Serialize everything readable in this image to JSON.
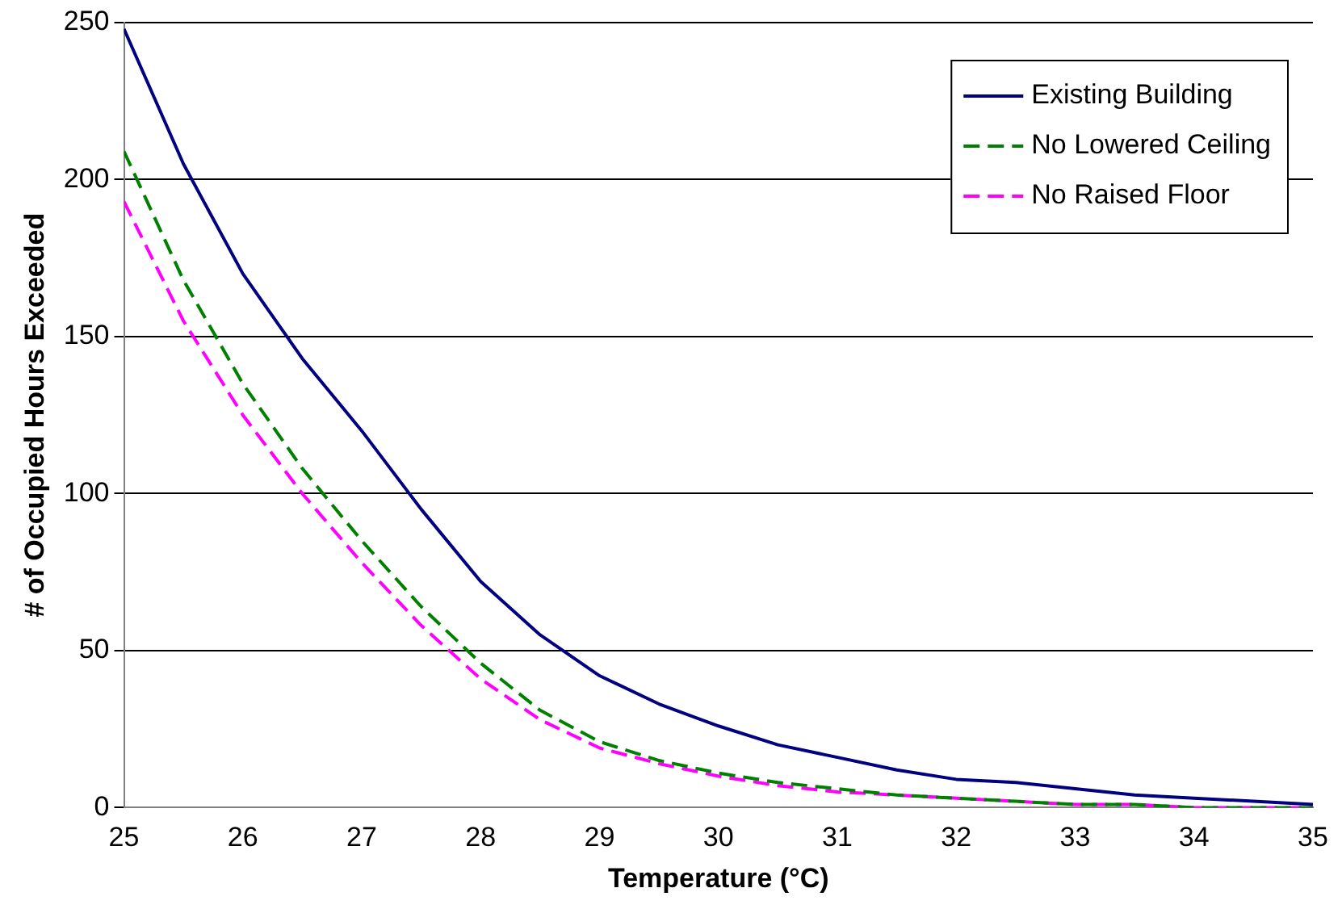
{
  "chart_data": {
    "type": "line",
    "xlabel": "Temperature (°C)",
    "ylabel": "# of Occupied Hours Exceeded",
    "x": [
      25,
      25.5,
      26,
      26.5,
      27,
      27.5,
      28,
      28.5,
      29,
      29.5,
      30,
      30.5,
      31,
      31.5,
      32,
      32.5,
      33,
      33.5,
      34,
      34.5,
      35
    ],
    "series": [
      {
        "name": "Existing Building",
        "color": "#000080",
        "line_style": "solid",
        "values": [
          248,
          205,
          170,
          143,
          120,
          95,
          72,
          55,
          42,
          33,
          26,
          20,
          16,
          12,
          9,
          8,
          6,
          4,
          3,
          2,
          1
        ]
      },
      {
        "name": "No Lowered Ceiling",
        "color": "#008000",
        "line_style": "dashed",
        "values": [
          209,
          168,
          135,
          108,
          85,
          64,
          46,
          31,
          21,
          15,
          11,
          8,
          6,
          4,
          3,
          2,
          1,
          1,
          0,
          0,
          0
        ]
      },
      {
        "name": "No Raised Floor",
        "color": "#ff00ff",
        "line_style": "dashed",
        "values": [
          193,
          155,
          125,
          100,
          78,
          58,
          41,
          28,
          19,
          14,
          10,
          7,
          5,
          4,
          3,
          2,
          1,
          1,
          0,
          0,
          0
        ]
      }
    ],
    "xlim": [
      25,
      35
    ],
    "xticks": [
      25,
      26,
      27,
      28,
      29,
      30,
      31,
      32,
      33,
      34,
      35
    ],
    "ylim": [
      0,
      250
    ],
    "yticks": [
      0,
      50,
      100,
      150,
      200,
      250
    ],
    "grid": "y",
    "legend": "top right",
    "marker": "none"
  }
}
